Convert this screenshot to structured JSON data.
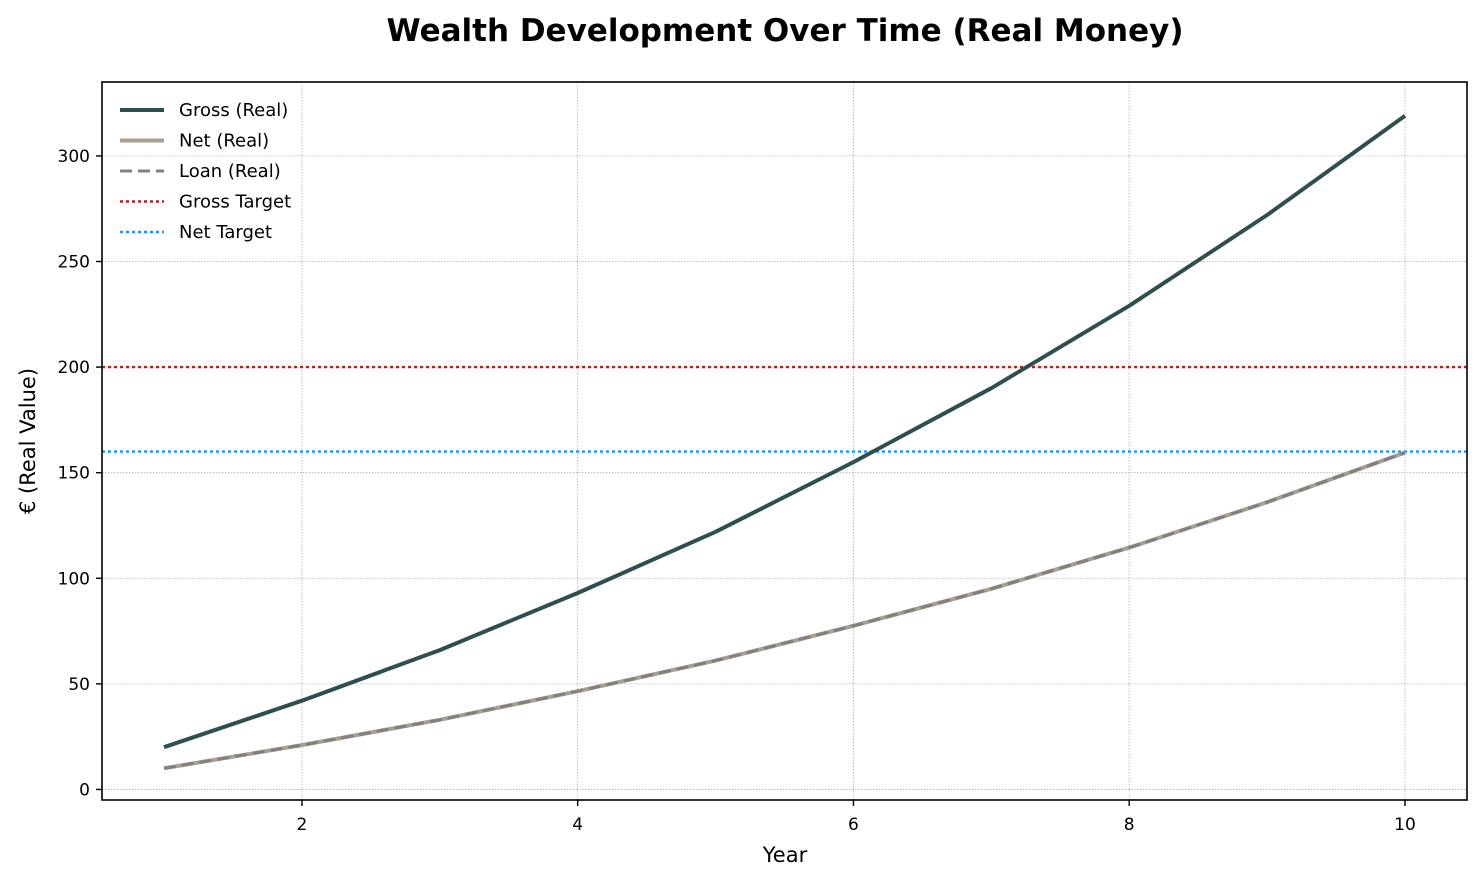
{
  "chart_data": {
    "type": "line",
    "title": "Wealth Development Over Time (Real Money)",
    "xlabel": "Year",
    "ylabel": "€ (Real Value)",
    "xlim": [
      0.55,
      10.45
    ],
    "ylim": [
      -5,
      335
    ],
    "xticks": [
      2,
      4,
      6,
      8,
      10
    ],
    "yticks": [
      0,
      50,
      100,
      150,
      200,
      250,
      300
    ],
    "grid": true,
    "legend_position": "top-left",
    "x": [
      1,
      2,
      3,
      4,
      5,
      6,
      7,
      8,
      9,
      10
    ],
    "series": [
      {
        "name": "Gross (Real)",
        "style": "solid",
        "color": "#2f4f4f",
        "width": 4,
        "values": [
          20,
          42,
          66,
          93,
          122,
          155,
          190,
          229,
          272,
          319
        ]
      },
      {
        "name": "Net (Real)",
        "style": "solid",
        "color": "#a89f91",
        "width": 4,
        "values": [
          10,
          21,
          33,
          46.5,
          61,
          77.5,
          95,
          114.5,
          136,
          159.5
        ]
      },
      {
        "name": "Loan (Real)",
        "style": "dashed",
        "color": "#808080",
        "width": 3,
        "values": [
          10,
          21,
          33,
          46.5,
          61,
          77.5,
          95,
          114.5,
          136,
          159.5
        ]
      }
    ],
    "hlines": [
      {
        "name": "Gross Target",
        "value": 200,
        "color": "#b22222",
        "style": "dotted"
      },
      {
        "name": "Net Target",
        "value": 160,
        "color": "#1e90ff",
        "style": "dotted"
      }
    ]
  }
}
